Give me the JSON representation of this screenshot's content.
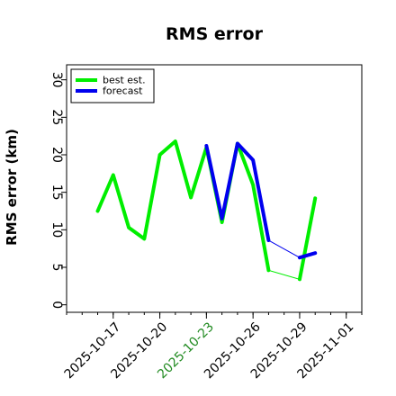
{
  "chart_data": {
    "type": "line",
    "title": "RMS error",
    "xlabel": "",
    "ylabel": "RMS error (km)",
    "ylim": [
      -1,
      32
    ],
    "xlim": [
      "2025-10-14",
      "2025-11-02"
    ],
    "y_ticks": [
      0,
      5,
      10,
      15,
      20,
      25,
      30
    ],
    "x_ticks": [
      {
        "date": "2025-10-17",
        "label": "2025-10-17",
        "color": "#000000"
      },
      {
        "date": "2025-10-20",
        "label": "2025-10-20",
        "color": "#000000"
      },
      {
        "date": "2025-10-23",
        "label": "2025-10-23",
        "color": "#228B22"
      },
      {
        "date": "2025-10-26",
        "label": "2025-10-26",
        "color": "#000000"
      },
      {
        "date": "2025-10-29",
        "label": "2025-10-29",
        "color": "#000000"
      },
      {
        "date": "2025-11-01",
        "label": "2025-11-01",
        "color": "#000000"
      }
    ],
    "legend_position": "top-left",
    "grid": false,
    "series": [
      {
        "name": "best est.",
        "color": "#00ee00",
        "points": [
          {
            "x": "2025-10-16",
            "y": 12.5
          },
          {
            "x": "2025-10-17",
            "y": 17.3
          },
          {
            "x": "2025-10-18",
            "y": 10.3
          },
          {
            "x": "2025-10-19",
            "y": 8.8
          },
          {
            "x": "2025-10-20",
            "y": 20.0
          },
          {
            "x": "2025-10-21",
            "y": 21.8
          },
          {
            "x": "2025-10-22",
            "y": 14.3
          },
          {
            "x": "2025-10-23",
            "y": 21.0
          },
          {
            "x": "2025-10-24",
            "y": 11.0
          },
          {
            "x": "2025-10-25",
            "y": 21.5
          },
          {
            "x": "2025-10-26",
            "y": 16.0
          },
          {
            "x": "2025-10-27",
            "y": 4.6
          },
          {
            "x": "2025-10-29",
            "y": 3.4
          },
          {
            "x": "2025-10-30",
            "y": 14.2
          }
        ]
      },
      {
        "name": "forecast",
        "color": "#0000ee",
        "points": [
          {
            "x": "2025-10-23",
            "y": 21.2
          },
          {
            "x": "2025-10-24",
            "y": 11.5
          },
          {
            "x": "2025-10-25",
            "y": 21.5
          },
          {
            "x": "2025-10-26",
            "y": 19.3
          },
          {
            "x": "2025-10-27",
            "y": 8.6
          },
          {
            "x": "2025-10-29",
            "y": 6.3
          },
          {
            "x": "2025-10-30",
            "y": 6.9
          }
        ]
      }
    ]
  }
}
